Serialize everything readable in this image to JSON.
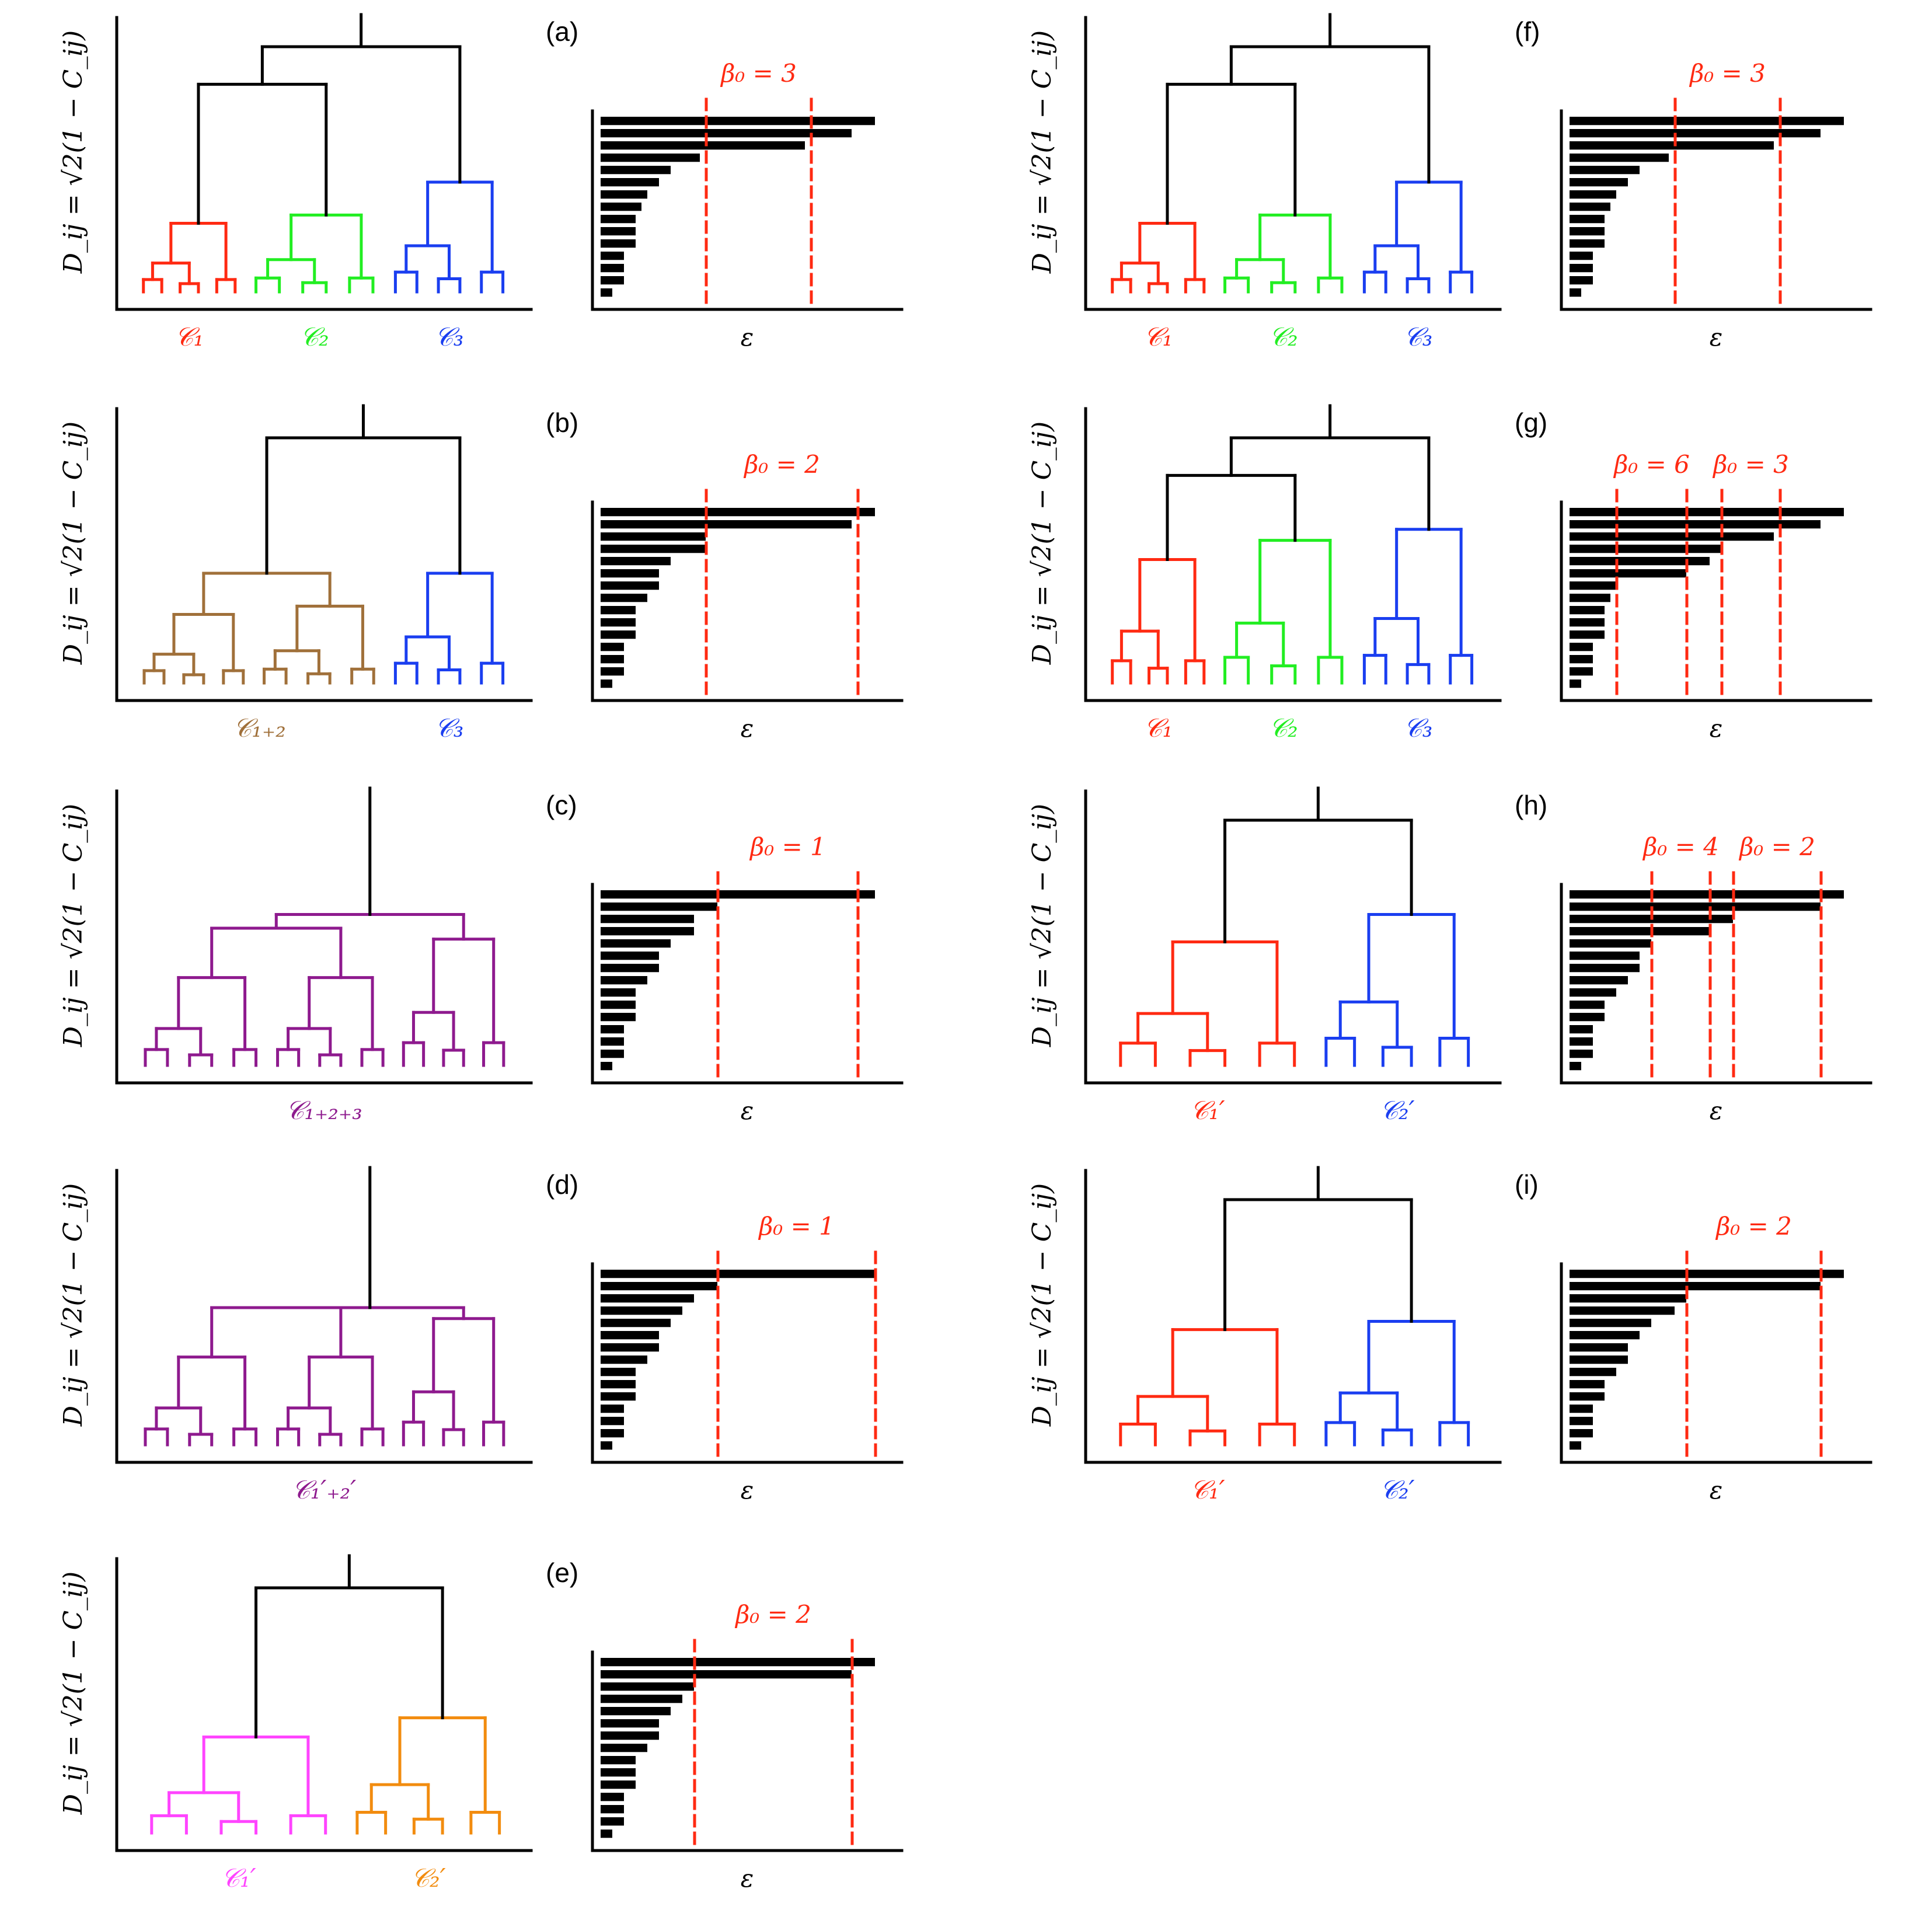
{
  "figure": {
    "y_axis_label": "D_ij = √2(1 − C_ij)",
    "x_axis_label": "ε",
    "panels": [
      {
        "id": "a",
        "label": "(a)",
        "top": "black",
        "groups": [
          {
            "name": "C1",
            "label": "𝒞₁",
            "color": "#ff2a12",
            "shape": "small",
            "merge_level": 0.25
          },
          {
            "name": "C2",
            "label": "𝒞₂",
            "color": "#22ee22",
            "shape": "small",
            "merge_level": 0.28
          },
          {
            "name": "C3",
            "label": "𝒞₃",
            "color": "#1a3ef0",
            "shape": "small",
            "merge_level": 0.4
          }
        ],
        "bars": [
          23.5,
          21.5,
          17.5,
          8.5,
          6,
          5,
          4,
          3.5,
          3,
          3,
          3,
          2,
          2,
          2,
          1
        ],
        "beta_lines": [
          {
            "label": "β₀ = 3",
            "x": [
              9,
              18
            ]
          }
        ]
      },
      {
        "id": "b",
        "label": "(b)",
        "top": "black",
        "groups": [
          {
            "name": "C1+2",
            "label": "𝒞₁₊₂",
            "color": "#a0703a",
            "shape": "merged2",
            "merge_level": 0.4
          },
          {
            "name": "C3",
            "label": "𝒞₃",
            "color": "#1a3ef0",
            "shape": "small",
            "merge_level": 0.4
          }
        ],
        "bars": [
          23.5,
          21.5,
          9,
          9,
          6,
          5,
          5,
          4,
          3,
          3,
          3,
          2,
          2,
          2,
          1
        ],
        "beta_lines": [
          {
            "label": "β₀ = 2",
            "x": [
              9,
              22
            ]
          }
        ]
      },
      {
        "id": "c",
        "label": "(c)",
        "top": "purple",
        "groups": [
          {
            "name": "C1+2+3",
            "label": "𝒞₁₊₂₊₃",
            "color": "#8e1a8e",
            "shape": "merged3",
            "merge_level": 0.55
          }
        ],
        "bars": [
          23.5,
          10,
          8,
          8,
          6,
          5,
          5,
          4,
          3,
          3,
          3,
          2,
          2,
          2,
          1
        ],
        "beta_lines": [
          {
            "label": "β₀ = 1",
            "x": [
              10,
              22
            ]
          }
        ]
      },
      {
        "id": "d",
        "label": "(d)",
        "top": "purple",
        "groups": [
          {
            "name": "C1'+2'",
            "label": "𝒞₁′₊₂′",
            "color": "#8e1a8e",
            "shape": "merged_prime",
            "merge_level": 0.5
          }
        ],
        "bars": [
          23.5,
          10,
          8,
          7,
          6,
          5,
          5,
          4,
          3,
          3,
          3,
          2,
          2,
          2,
          1
        ],
        "beta_lines": [
          {
            "label": "β₀ = 1",
            "x": [
              10,
              23.5
            ]
          }
        ]
      },
      {
        "id": "e",
        "label": "(e)",
        "top": "black",
        "groups": [
          {
            "name": "C1'",
            "label": "𝒞₁′",
            "color": "#ff44ff",
            "shape": "prime1",
            "merge_level": 0.35
          },
          {
            "name": "C2'",
            "label": "𝒞₂′",
            "color": "#f28c0f",
            "shape": "prime2",
            "merge_level": 0.42
          }
        ],
        "bars": [
          23.5,
          21.5,
          8,
          7,
          6,
          5,
          5,
          4,
          3,
          3,
          3,
          2,
          2,
          2,
          1
        ],
        "beta_lines": [
          {
            "label": "β₀ = 2",
            "x": [
              8,
              21.5
            ]
          }
        ]
      },
      {
        "id": "f",
        "label": "(f)",
        "top": "black",
        "groups": [
          {
            "name": "C1",
            "label": "𝒞₁",
            "color": "#ff2a12",
            "shape": "small",
            "merge_level": 0.25
          },
          {
            "name": "C2",
            "label": "𝒞₂",
            "color": "#22ee22",
            "shape": "small",
            "merge_level": 0.28
          },
          {
            "name": "C3",
            "label": "𝒞₃",
            "color": "#1a3ef0",
            "shape": "small",
            "merge_level": 0.4
          }
        ],
        "bars": [
          23.5,
          21.5,
          17.5,
          8.5,
          6,
          5,
          4,
          3.5,
          3,
          3,
          3,
          2,
          2,
          2,
          1
        ],
        "beta_lines": [
          {
            "label": "β₀ = 3",
            "x": [
              9,
              18
            ]
          }
        ]
      },
      {
        "id": "g",
        "label": "(g)",
        "top": "black",
        "groups": [
          {
            "name": "C1",
            "label": "𝒞₁",
            "color": "#ff2a12",
            "shape": "small_tall",
            "merge_level": 0.45
          },
          {
            "name": "C2",
            "label": "𝒞₂",
            "color": "#22ee22",
            "shape": "small_tall",
            "merge_level": 0.52
          },
          {
            "name": "C3",
            "label": "𝒞₃",
            "color": "#1a3ef0",
            "shape": "small_tall",
            "merge_level": 0.56
          }
        ],
        "bars": [
          23.5,
          21.5,
          17.5,
          13,
          12,
          10,
          4,
          3.5,
          3,
          3,
          3,
          2,
          2,
          2,
          1
        ],
        "beta_lines": [
          {
            "label": "β₀ = 6",
            "x": [
              4,
              10
            ]
          },
          {
            "label": "β₀ = 3",
            "x": [
              13,
              18
            ]
          }
        ]
      },
      {
        "id": "h",
        "label": "(h)",
        "top": "black",
        "groups": [
          {
            "name": "C1'",
            "label": "𝒞₁′",
            "color": "#ff2a12",
            "shape": "prime1",
            "merge_level": 0.45
          },
          {
            "name": "C2'",
            "label": "𝒞₂′",
            "color": "#1a3ef0",
            "shape": "prime2",
            "merge_level": 0.55
          }
        ],
        "bars": [
          23.5,
          21.5,
          14,
          12,
          7,
          6,
          6,
          5,
          4,
          3,
          3,
          2,
          2,
          2,
          1
        ],
        "beta_lines": [
          {
            "label": "β₀ = 4",
            "x": [
              7,
              12
            ]
          },
          {
            "label": "β₀ = 2",
            "x": [
              14,
              21.5
            ]
          }
        ]
      },
      {
        "id": "i",
        "label": "(i)",
        "top": "black",
        "groups": [
          {
            "name": "C1'",
            "label": "𝒞₁′",
            "color": "#ff2a12",
            "shape": "prime1",
            "merge_level": 0.42
          },
          {
            "name": "C2'",
            "label": "𝒞₂′",
            "color": "#1a3ef0",
            "shape": "prime2",
            "merge_level": 0.45
          }
        ],
        "bars": [
          23.5,
          21.5,
          10,
          9,
          7,
          6,
          5,
          5,
          4,
          3,
          3,
          2,
          2,
          2,
          1
        ],
        "beta_lines": [
          {
            "label": "β₀ = 2",
            "x": [
              10,
              21.5
            ]
          }
        ]
      }
    ]
  },
  "colors": {
    "axis": "#000000",
    "bar": "#000000",
    "beta_line": "#ff2a12",
    "beta_label": "#ff2a12"
  }
}
